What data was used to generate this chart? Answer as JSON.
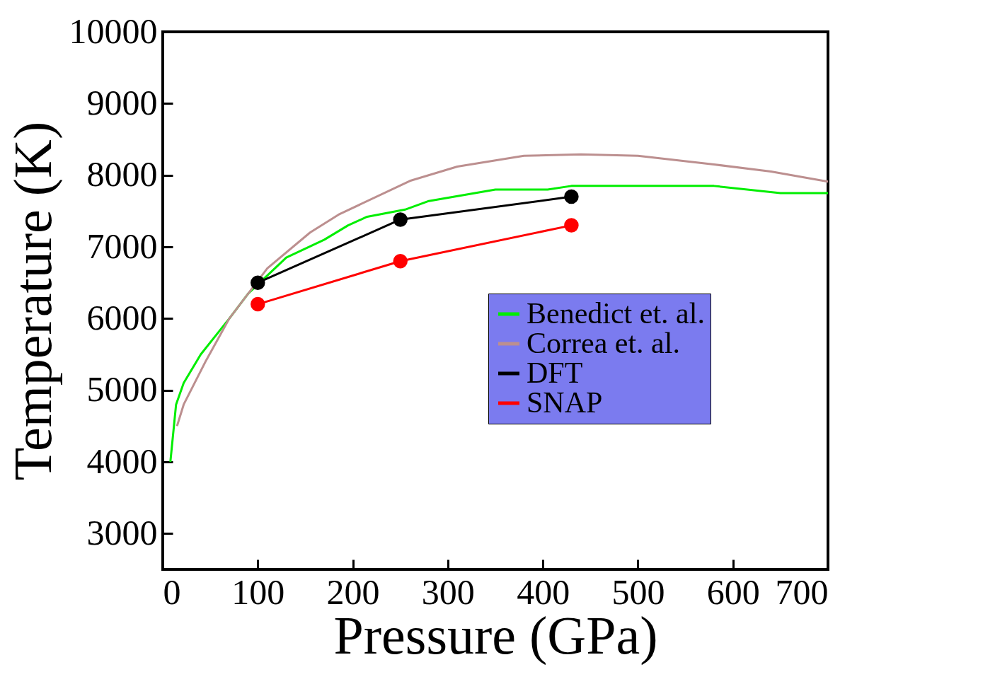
{
  "chart_data": {
    "type": "line",
    "xlabel": "Pressure (GPa)",
    "ylabel": "Temperature (K)",
    "xlim": [
      0,
      700
    ],
    "xticks": [
      0,
      100,
      200,
      300,
      400,
      500,
      600,
      700
    ],
    "ylim": [
      2500,
      10000
    ],
    "yticks": [
      3000,
      4000,
      5000,
      6000,
      7000,
      8000,
      9000,
      10000
    ],
    "legend": "right",
    "grid": false,
    "series": [
      {
        "name": "Benedict et. al.",
        "color": "#00ee00",
        "marker": "none",
        "x": [
          8,
          14,
          22,
          40,
          70,
          90,
          130,
          170,
          195,
          215,
          255,
          280,
          350,
          405,
          430,
          580,
          650,
          700
        ],
        "values": [
          4000,
          4800,
          5100,
          5500,
          6000,
          6350,
          6850,
          7100,
          7300,
          7420,
          7520,
          7640,
          7800,
          7800,
          7850,
          7850,
          7750,
          7750
        ]
      },
      {
        "name": "Correa et. al.",
        "color": "#bc8f8f",
        "marker": "none",
        "x": [
          15,
          22,
          45,
          70,
          110,
          155,
          185,
          260,
          310,
          380,
          440,
          500,
          580,
          640,
          700
        ],
        "values": [
          4500,
          4800,
          5400,
          6000,
          6700,
          7200,
          7450,
          7920,
          8120,
          8270,
          8290,
          8270,
          8150,
          8050,
          7910
        ]
      },
      {
        "name": "DFT",
        "color": "#000000",
        "marker": "circle",
        "x": [
          100,
          250,
          430
        ],
        "values": [
          6500,
          7380,
          7700
        ]
      },
      {
        "name": "SNAP",
        "color": "#ff0000",
        "marker": "circle",
        "x": [
          100,
          250,
          430
        ],
        "values": [
          6200,
          6800,
          7300
        ]
      }
    ]
  }
}
